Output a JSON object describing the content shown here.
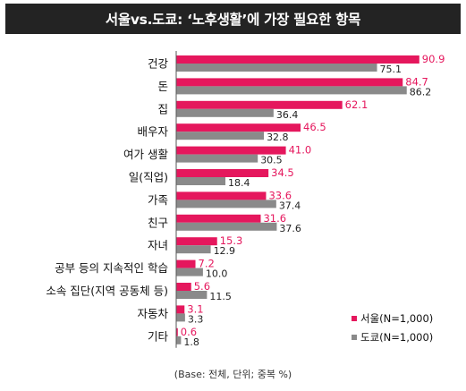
{
  "chart_data": {
    "type": "bar",
    "orientation": "horizontal",
    "title": "서울vs.도쿄: ‘노후생활’에 가장 필요한 항목",
    "footnote": "(Base: 전체, 단위; 중복 %)",
    "categories": [
      "건강",
      "돈",
      "집",
      "배우자",
      "여가 생활",
      "일(직업)",
      "가족",
      "친구",
      "자녀",
      "공부 등의 지속적인 학습",
      "소속 집단(지역 공동체 등)",
      "자동차",
      "기타"
    ],
    "series": [
      {
        "name": "서울(N=1,000)",
        "color": "#e5175d",
        "values": [
          90.9,
          84.7,
          62.1,
          46.5,
          41.0,
          34.5,
          33.6,
          31.6,
          15.3,
          7.2,
          5.6,
          3.1,
          0.6
        ],
        "labels": [
          "90.9",
          "84.7",
          "62.1",
          "46.5",
          "41.0",
          "34.5",
          "33.6",
          "31.6",
          "15.3",
          "7.2",
          "5.6",
          "3.1",
          "0.6"
        ]
      },
      {
        "name": "도쿄(N=1,000)",
        "color": "#8a8a8a",
        "values": [
          75.1,
          86.2,
          36.4,
          32.8,
          30.5,
          18.4,
          37.4,
          37.6,
          12.9,
          10.0,
          11.5,
          3.3,
          1.8
        ],
        "labels": [
          "75.1",
          "86.2",
          "36.4",
          "32.8",
          "30.5",
          "18.4",
          "37.4",
          "37.6",
          "12.9",
          "10.0",
          "11.5",
          "3.3",
          "1.8"
        ]
      }
    ],
    "xlim": [
      0,
      100
    ],
    "grid": false,
    "legend_position": "bottom-right",
    "label_color_series1": "#e5175d",
    "label_color_series2": "#222222"
  }
}
